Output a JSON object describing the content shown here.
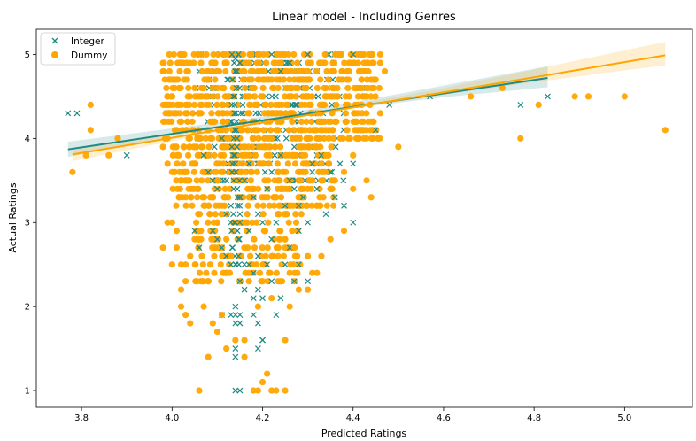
{
  "chart_data": {
    "type": "scatter",
    "title": "Linear model - Including Genres",
    "xlabel": "Predicted Ratings",
    "ylabel": "Actual Ratings",
    "xlim": [
      3.7,
      5.15
    ],
    "ylim": [
      0.8,
      5.3
    ],
    "xticks": [
      3.8,
      4.0,
      4.2,
      4.4,
      4.6,
      4.8,
      5.0
    ],
    "yticks": [
      1,
      2,
      3,
      4,
      5
    ],
    "grid": false,
    "legend_position": "upper-left",
    "colors": {
      "integer": "#1f8a85",
      "dummy": "#ffa500"
    },
    "series": [
      {
        "name": "Integer",
        "marker": "x",
        "color": "#1f8a85",
        "points": [
          [
            3.77,
            4.3
          ],
          [
            3.79,
            4.3
          ],
          [
            3.9,
            3.8
          ],
          [
            4.22,
            5.0
          ],
          [
            4.3,
            5.0
          ],
          [
            4.4,
            5.0
          ],
          [
            4.42,
            4.6
          ],
          [
            4.45,
            4.1
          ],
          [
            4.48,
            4.4
          ],
          [
            4.57,
            4.5
          ],
          [
            4.77,
            4.4
          ],
          [
            4.83,
            4.5
          ],
          [
            4.4,
            3.7
          ],
          [
            4.4,
            3.0
          ],
          [
            4.35,
            3.6
          ],
          [
            4.33,
            3.8
          ],
          [
            4.31,
            3.7
          ],
          [
            4.29,
            3.3
          ],
          [
            4.3,
            3.0
          ],
          [
            4.28,
            2.9
          ],
          [
            4.26,
            2.7
          ],
          [
            4.25,
            3.2
          ],
          [
            4.23,
            3.0
          ],
          [
            4.22,
            2.8
          ],
          [
            4.2,
            3.0
          ],
          [
            4.19,
            2.6
          ],
          [
            4.18,
            2.4
          ],
          [
            4.17,
            2.5
          ],
          [
            4.16,
            2.5
          ],
          [
            4.15,
            2.3
          ],
          [
            4.14,
            2.5
          ],
          [
            4.13,
            2.5
          ],
          [
            4.12,
            2.6
          ],
          [
            4.11,
            2.7
          ],
          [
            4.1,
            2.8
          ],
          [
            4.09,
            2.9
          ],
          [
            4.14,
            2.0
          ],
          [
            4.15,
            1.9
          ],
          [
            4.14,
            1.9
          ],
          [
            4.13,
            1.9
          ],
          [
            4.14,
            1.8
          ],
          [
            4.15,
            1.8
          ],
          [
            4.14,
            1.5
          ],
          [
            4.14,
            1.4
          ],
          [
            4.14,
            1.0
          ],
          [
            4.15,
            1.0
          ],
          [
            4.2,
            1.6
          ],
          [
            4.18,
            2.1
          ],
          [
            4.16,
            2.2
          ],
          [
            4.22,
            2.3
          ],
          [
            4.23,
            1.9
          ],
          [
            4.25,
            2.5
          ],
          [
            4.28,
            2.5
          ],
          [
            4.27,
            2.3
          ],
          [
            4.3,
            2.3
          ],
          [
            4.24,
            2.1
          ],
          [
            4.2,
            2.1
          ],
          [
            4.21,
            2.5
          ],
          [
            4.19,
            2.2
          ],
          [
            4.17,
            2.9
          ],
          [
            4.13,
            3.0
          ],
          [
            4.12,
            3.1
          ],
          [
            4.1,
            3.4
          ],
          [
            4.09,
            3.5
          ],
          [
            4.08,
            3.6
          ],
          [
            4.07,
            3.8
          ],
          [
            4.11,
            4.0
          ],
          [
            4.12,
            3.5
          ],
          [
            4.13,
            3.2
          ],
          [
            4.14,
            3.0
          ],
          [
            4.15,
            3.3
          ],
          [
            4.16,
            3.5
          ],
          [
            4.17,
            3.7
          ],
          [
            4.18,
            3.3
          ],
          [
            4.19,
            3.1
          ],
          [
            4.21,
            3.4
          ],
          [
            4.22,
            3.6
          ],
          [
            4.24,
            3.8
          ],
          [
            4.26,
            3.5
          ],
          [
            4.27,
            3.4
          ],
          [
            4.28,
            3.2
          ],
          [
            4.32,
            3.4
          ],
          [
            4.34,
            3.1
          ],
          [
            4.36,
            3.3
          ],
          [
            4.38,
            3.2
          ],
          [
            4.06,
            2.7
          ],
          [
            4.05,
            2.9
          ],
          [
            4.11,
            1.9
          ],
          [
            4.18,
            1.9
          ],
          [
            4.19,
            1.8
          ],
          [
            4.19,
            1.5
          ],
          [
            4.2,
            1.6
          ],
          [
            4.24,
            4.8
          ],
          [
            4.26,
            4.9
          ],
          [
            4.14,
            4.95
          ],
          [
            4.15,
            4.9
          ]
        ]
      },
      {
        "name": "Dummy",
        "marker": "o",
        "color": "#ffa500",
        "points": [
          [
            3.78,
            3.6
          ],
          [
            3.81,
            3.8
          ],
          [
            3.82,
            4.4
          ],
          [
            3.82,
            4.1
          ],
          [
            3.86,
            3.8
          ],
          [
            3.88,
            4.0
          ],
          [
            4.5,
            3.9
          ],
          [
            4.66,
            4.5
          ],
          [
            4.73,
            4.6
          ],
          [
            4.77,
            4.0
          ],
          [
            4.81,
            4.4
          ],
          [
            4.89,
            4.5
          ],
          [
            4.92,
            4.5
          ],
          [
            5.0,
            4.5
          ],
          [
            5.09,
            4.1
          ],
          [
            4.44,
            3.3
          ],
          [
            4.43,
            3.5
          ],
          [
            4.4,
            3.4
          ],
          [
            4.38,
            3.6
          ],
          [
            4.36,
            3.5
          ],
          [
            4.34,
            3.8
          ],
          [
            4.32,
            2.4
          ],
          [
            4.31,
            2.4
          ],
          [
            4.3,
            2.6
          ],
          [
            4.27,
            2.7
          ],
          [
            4.26,
            2.4
          ],
          [
            4.25,
            1.6
          ],
          [
            4.23,
            1.0
          ],
          [
            4.22,
            1.0
          ],
          [
            4.21,
            1.2
          ],
          [
            4.19,
            1.0
          ],
          [
            4.18,
            1.0
          ],
          [
            4.16,
            1.6
          ],
          [
            4.14,
            1.6
          ],
          [
            4.12,
            1.5
          ],
          [
            4.11,
            1.9
          ],
          [
            4.1,
            1.7
          ],
          [
            4.09,
            1.8
          ],
          [
            4.07,
            2.0
          ],
          [
            4.06,
            1.0
          ],
          [
            4.04,
            1.8
          ],
          [
            4.03,
            1.9
          ],
          [
            4.02,
            2.0
          ],
          [
            4.02,
            2.2
          ],
          [
            4.03,
            2.3
          ],
          [
            4.03,
            2.5
          ],
          [
            4.02,
            2.5
          ],
          [
            4.01,
            2.7
          ],
          [
            4.01,
            2.9
          ],
          [
            4.0,
            3.0
          ],
          [
            3.98,
            2.7
          ],
          [
            3.99,
            3.0
          ],
          [
            4.0,
            2.5
          ],
          [
            4.04,
            2.6
          ],
          [
            4.05,
            2.8
          ],
          [
            4.07,
            3.2
          ],
          [
            4.09,
            3.3
          ],
          [
            4.1,
            3.0
          ],
          [
            4.12,
            2.8
          ],
          [
            4.13,
            2.6
          ],
          [
            4.17,
            2.3
          ],
          [
            4.19,
            2.0
          ],
          [
            4.22,
            2.1
          ],
          [
            4.24,
            2.3
          ],
          [
            4.26,
            2.0
          ],
          [
            4.28,
            2.2
          ],
          [
            4.3,
            2.2
          ],
          [
            4.33,
            2.6
          ],
          [
            4.35,
            2.8
          ],
          [
            4.38,
            2.9
          ],
          [
            3.98,
            4.8
          ],
          [
            3.98,
            4.9
          ],
          [
            3.99,
            3.7
          ],
          [
            4.0,
            3.6
          ],
          [
            3.98,
            3.9
          ],
          [
            4.08,
            1.4
          ],
          [
            4.16,
            1.4
          ],
          [
            4.2,
            1.1
          ],
          [
            4.25,
            1.0
          ],
          [
            4.4,
            3.8
          ],
          [
            4.42,
            4.1
          ],
          [
            4.44,
            4.2
          ],
          [
            4.46,
            4.3
          ],
          [
            4.47,
            4.8
          ],
          [
            4.46,
            4.9
          ],
          [
            4.46,
            5.0
          ],
          [
            4.45,
            4.7
          ],
          [
            4.43,
            4.5
          ],
          [
            4.42,
            4.6
          ]
        ]
      }
    ],
    "regression": [
      {
        "series": "Integer",
        "color": "#1f8a85",
        "x": [
          3.77,
          4.83
        ],
        "y": [
          3.87,
          4.72
        ],
        "ci": [
          [
            3.77,
            3.78,
            3.96
          ],
          [
            4.0,
            4.03,
            4.12
          ],
          [
            4.2,
            4.21,
            4.26
          ],
          [
            4.4,
            4.36,
            4.43
          ],
          [
            4.6,
            4.49,
            4.63
          ],
          [
            4.83,
            4.61,
            4.86
          ]
        ]
      },
      {
        "series": "Dummy",
        "color": "#ffa500",
        "x": [
          3.78,
          5.09
        ],
        "y": [
          3.81,
          4.99
        ],
        "ci": [
          [
            3.78,
            3.73,
            3.89
          ],
          [
            4.0,
            3.97,
            4.04
          ],
          [
            4.2,
            4.18,
            4.21
          ],
          [
            4.4,
            4.36,
            4.4
          ],
          [
            4.6,
            4.52,
            4.6
          ],
          [
            4.8,
            4.67,
            4.82
          ],
          [
            5.0,
            4.81,
            5.05
          ],
          [
            5.09,
            4.87,
            5.15
          ]
        ]
      }
    ]
  }
}
